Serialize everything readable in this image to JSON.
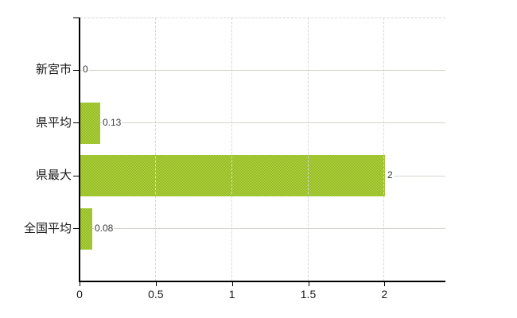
{
  "chart_data": {
    "type": "bar",
    "orientation": "horizontal",
    "title": "",
    "categories": [
      "新宮市",
      "県平均",
      "県最大",
      "全国平均"
    ],
    "values": [
      0,
      0.13,
      2,
      0.08
    ],
    "value_labels": [
      "0",
      "0.13",
      "2",
      "0.08"
    ],
    "x_ticks": [
      0,
      0.5,
      1,
      1.5,
      2
    ],
    "x_tick_labels": [
      "0",
      "0.5",
      "1",
      "1.5",
      "2"
    ],
    "xlim": [
      0,
      2.4
    ],
    "grid": {
      "horizontal": true,
      "vertical": true,
      "vertical_style": "dashed",
      "top_border_style": "dashed"
    },
    "legend": null,
    "colors": {
      "bar_fill_light": "#aed136",
      "bar_fill_dark": "#93b92c",
      "axis": "#000000",
      "grid_horizontal": "#cfd6cb",
      "grid_vertical": "#d6d6d6",
      "category_text": "#1a1a1a",
      "tick_text": "#1a1a1a",
      "value_text": "#3a3a3a",
      "background": "#ffffff"
    }
  }
}
